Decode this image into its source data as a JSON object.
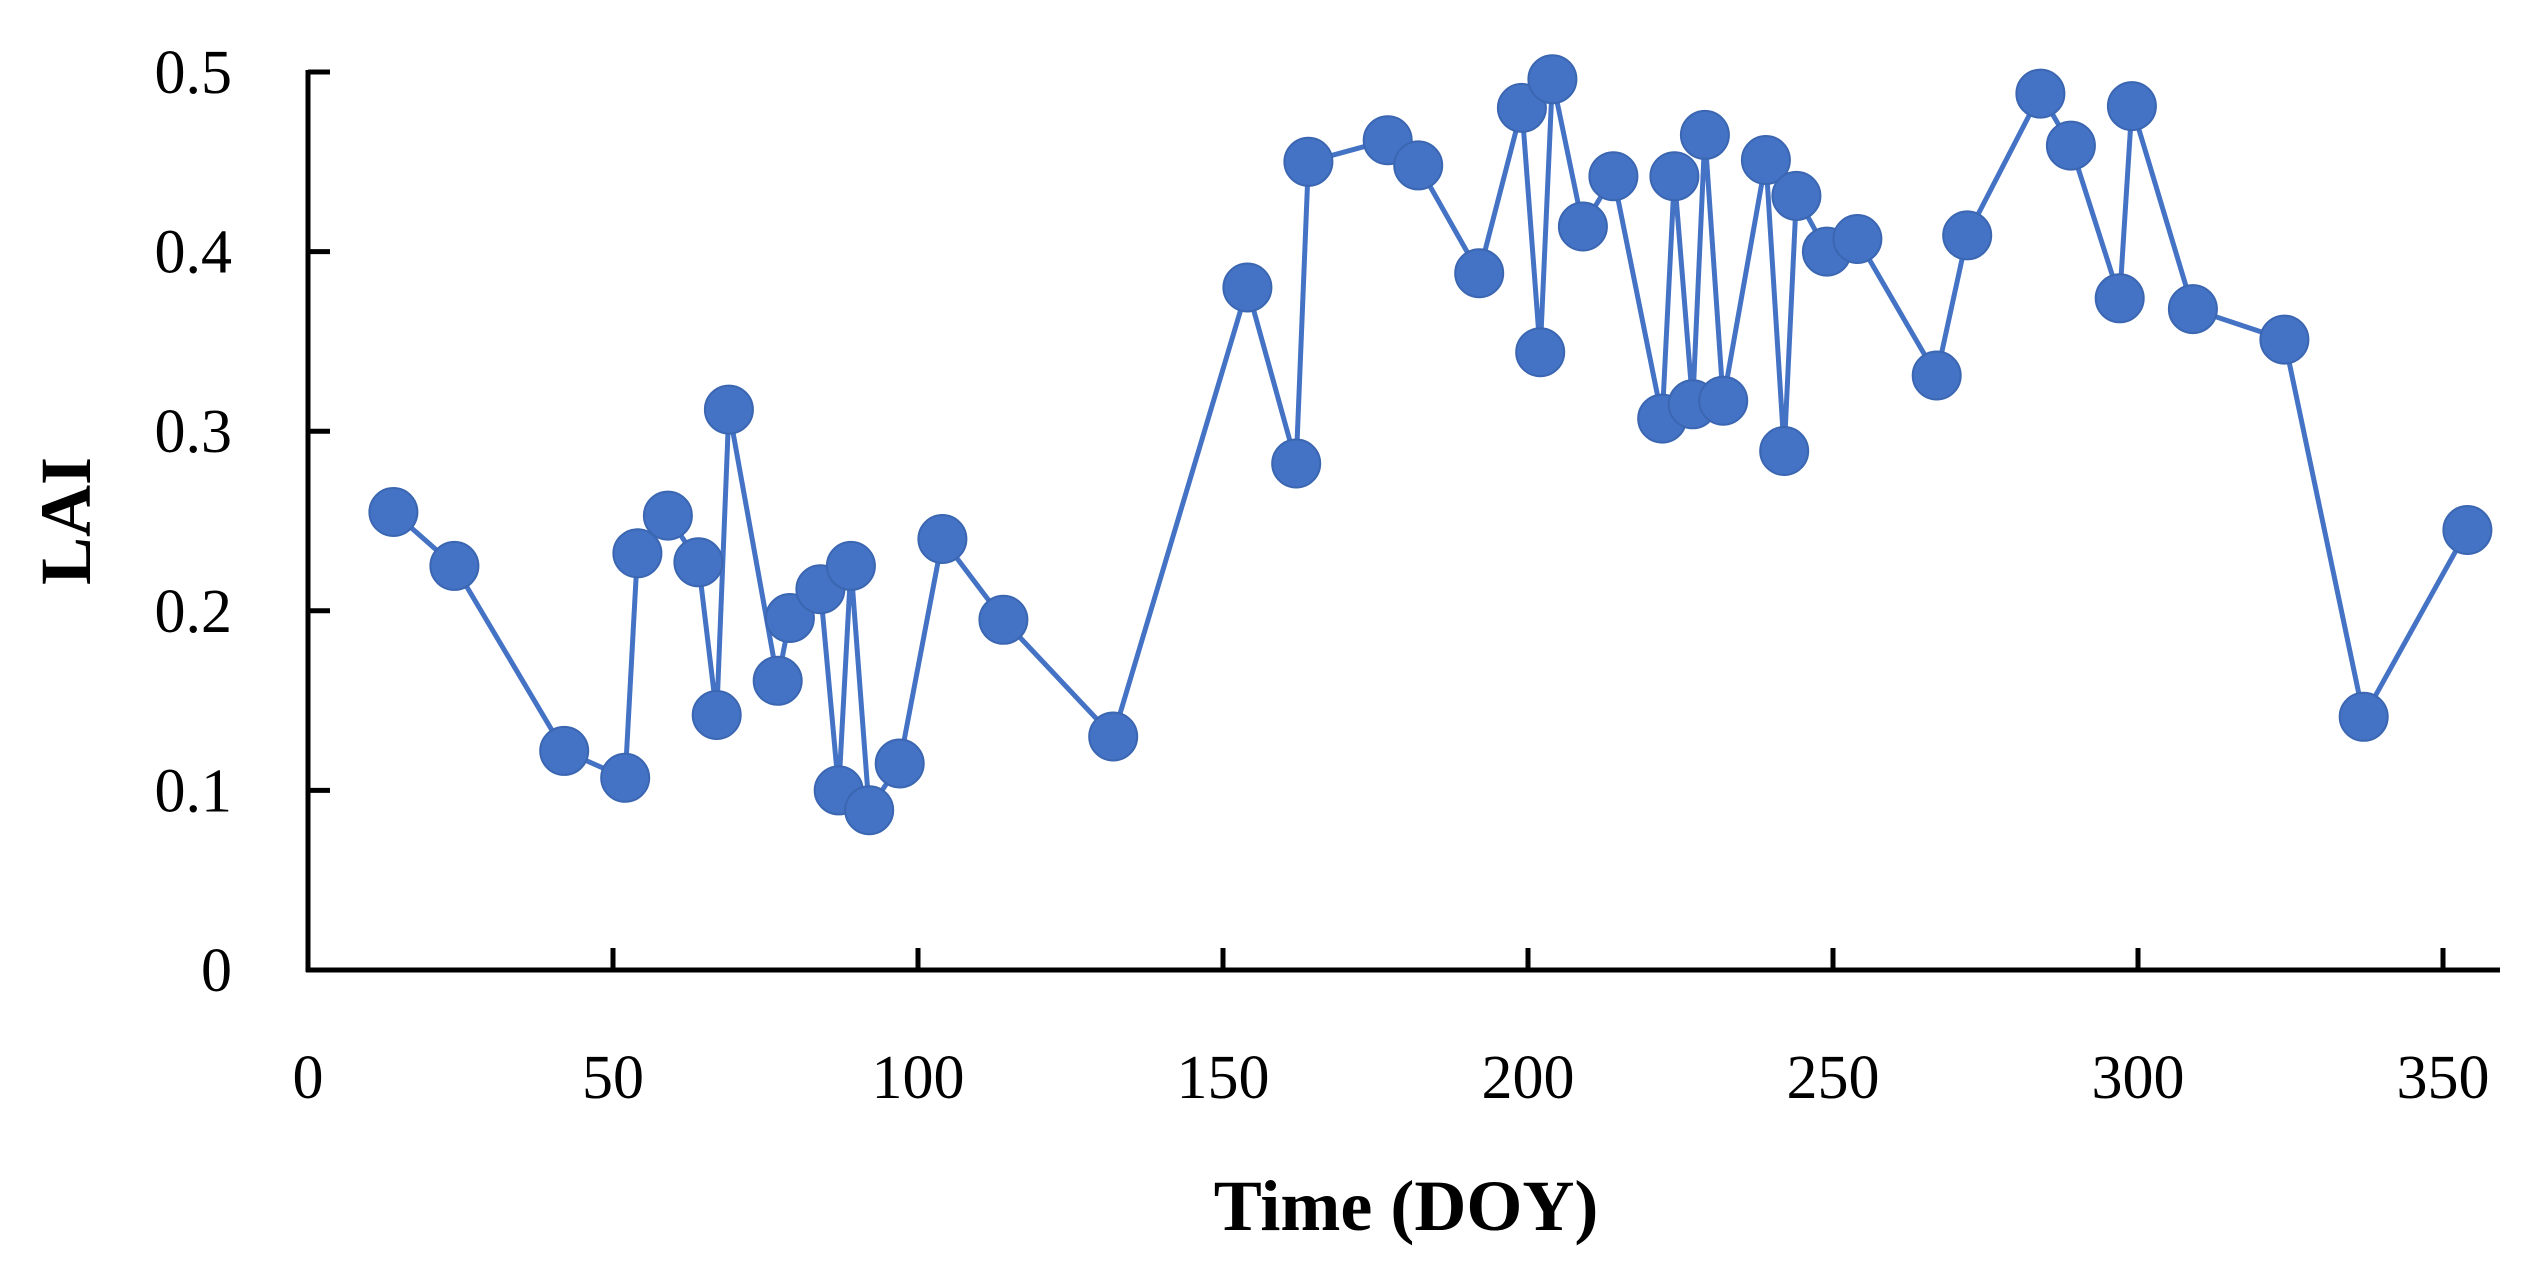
{
  "chart_data": {
    "type": "line",
    "title": "",
    "xlabel": "Time (DOY)",
    "ylabel": "LAI",
    "xlim": [
      0,
      360
    ],
    "ylim": [
      0,
      0.5
    ],
    "xticks": [
      0,
      50,
      100,
      150,
      200,
      250,
      300,
      350
    ],
    "yticks": [
      0,
      0.1,
      0.2,
      0.3,
      0.4,
      0.5
    ],
    "grid": false,
    "legend": "none",
    "series": [
      {
        "name": "LAI",
        "color": "#4472C4",
        "x": [
          14,
          24,
          42,
          52,
          54,
          59,
          64,
          67,
          69,
          77,
          79,
          84,
          87,
          89,
          92,
          97,
          104,
          114,
          132,
          154,
          162,
          164,
          177,
          182,
          192,
          199,
          202,
          204,
          209,
          214,
          222,
          224,
          227,
          229,
          232,
          239,
          242,
          244,
          249,
          254,
          267,
          272,
          284,
          289,
          297,
          299,
          309,
          324,
          337,
          354
        ],
        "y": [
          0.255,
          0.225,
          0.122,
          0.107,
          0.232,
          0.253,
          0.227,
          0.142,
          0.312,
          0.161,
          0.196,
          0.212,
          0.1,
          0.225,
          0.089,
          0.115,
          0.24,
          0.195,
          0.13,
          0.38,
          0.282,
          0.45,
          0.462,
          0.448,
          0.388,
          0.48,
          0.344,
          0.496,
          0.414,
          0.442,
          0.307,
          0.442,
          0.315,
          0.465,
          0.317,
          0.451,
          0.289,
          0.431,
          0.4,
          0.407,
          0.331,
          0.409,
          0.488,
          0.459,
          0.374,
          0.481,
          0.368,
          0.351,
          0.141,
          0.245
        ]
      }
    ]
  }
}
